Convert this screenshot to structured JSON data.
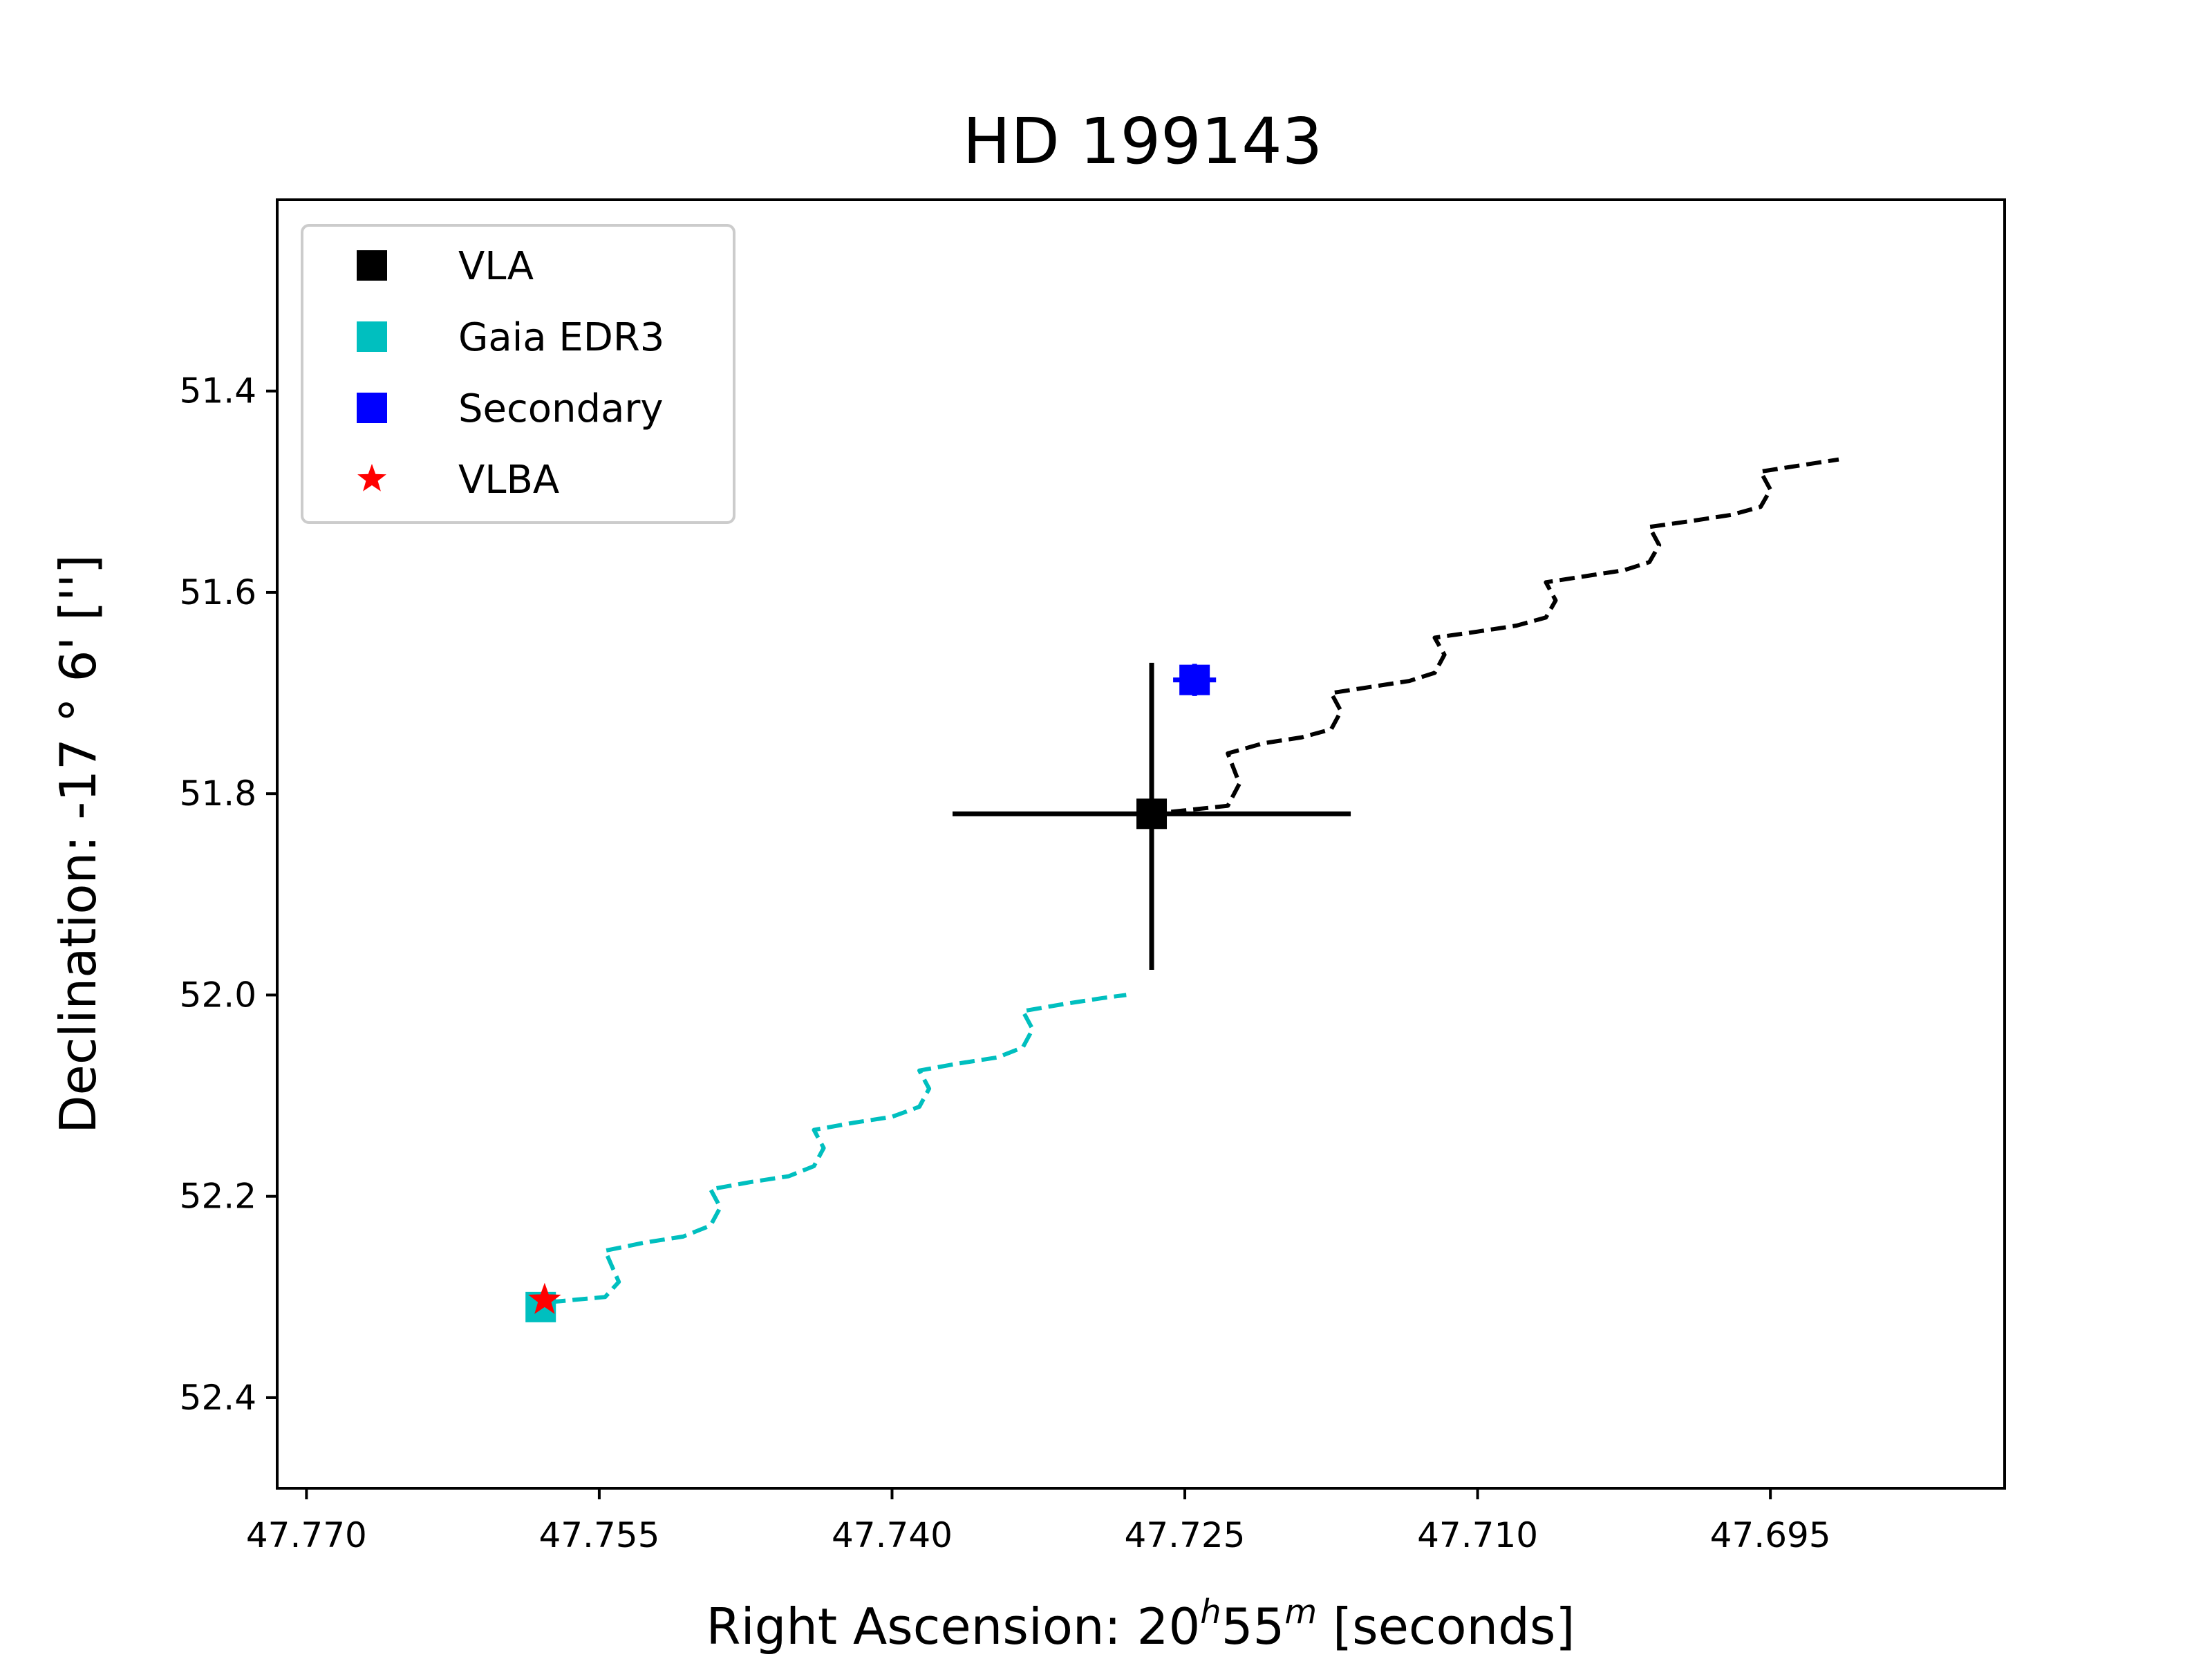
{
  "chart_data": {
    "type": "scatter",
    "title": "HD 199143",
    "xlabel": {
      "prefix": "Right Ascension: 20",
      "h_sup": "h",
      "mid": "55",
      "m_sup": "m",
      "suffix": " [seconds]"
    },
    "ylabel": "Declination: -17$^\\circ$6' ['']",
    "ylabel_display": "Declination: -17 ° 6' ['']",
    "x_inverted": true,
    "y_inverted": true,
    "xlim": [
      47.7715,
      47.683
    ],
    "ylim": [
      52.49,
      51.21
    ],
    "xticks": [
      47.77,
      47.755,
      47.74,
      47.725,
      47.71,
      47.695
    ],
    "xtick_labels": [
      "47.770",
      "47.755",
      "47.740",
      "47.725",
      "47.710",
      "47.695"
    ],
    "yticks": [
      51.4,
      51.6,
      51.8,
      52.0,
      52.2,
      52.4
    ],
    "ytick_labels": [
      "51.4",
      "51.6",
      "51.8",
      "52.0",
      "52.2",
      "52.4"
    ],
    "grid": false,
    "legend_position": "top-left",
    "legend": [
      {
        "label": "VLA",
        "marker": "square",
        "color": "#000000"
      },
      {
        "label": "Gaia EDR3",
        "marker": "square",
        "color": "#00bfbf"
      },
      {
        "label": "Secondary",
        "marker": "square",
        "color": "#0000ff"
      },
      {
        "label": "VLBA",
        "marker": "star",
        "color": "#ff0000"
      }
    ],
    "points": [
      {
        "name": "VLA",
        "x": 47.7267,
        "y": 51.82,
        "xerr": 0.0102,
        "yerr_low": 0.15,
        "yerr_high": 0.155,
        "color": "#000000",
        "marker": "square"
      },
      {
        "name": "Gaia EDR3",
        "x": 47.758,
        "y": 52.31,
        "color": "#00bfbf",
        "marker": "square"
      },
      {
        "name": "Secondary",
        "x": 47.7245,
        "y": 51.687,
        "xerr": 0.0011,
        "yerr": 0.016,
        "color": "#0000ff",
        "marker": "square"
      },
      {
        "name": "VLBA",
        "x": 47.7578,
        "y": 52.303,
        "color": "#ff0000",
        "marker": "star"
      }
    ],
    "tracks": [
      {
        "name": "VLA track",
        "color": "#000000",
        "style": "dashed",
        "x": [
          47.7257,
          47.7228,
          47.7222,
          47.7228,
          47.721,
          47.719,
          47.7175,
          47.717,
          47.7175,
          47.7155,
          47.7135,
          47.7122,
          47.7117,
          47.7122,
          47.71,
          47.708,
          47.7065,
          47.706,
          47.7065,
          47.7045,
          47.7025,
          47.7012,
          47.7007,
          47.7012,
          47.699,
          47.697,
          47.6955,
          47.695,
          47.6955,
          47.6935,
          47.6915
        ],
        "y": [
          51.818,
          51.812,
          51.79,
          51.76,
          51.75,
          51.744,
          51.736,
          51.718,
          51.7,
          51.694,
          51.688,
          51.68,
          51.662,
          51.645,
          51.639,
          51.633,
          51.625,
          51.608,
          51.59,
          51.584,
          51.578,
          51.57,
          51.553,
          51.535,
          51.529,
          51.523,
          51.515,
          51.498,
          51.48,
          51.474,
          51.468
        ]
      },
      {
        "name": "Gaia track",
        "color": "#00bfbf",
        "style": "dashed",
        "x": [
          47.7575,
          47.7547,
          47.754,
          47.7547,
          47.7527,
          47.7507,
          47.7493,
          47.7488,
          47.7493,
          47.7473,
          47.7453,
          47.744,
          47.7435,
          47.744,
          47.742,
          47.74,
          47.7386,
          47.7381,
          47.7386,
          47.7366,
          47.7346,
          47.7333,
          47.7328,
          47.7333,
          47.7312,
          47.7292,
          47.728
        ],
        "y": [
          52.305,
          52.3,
          52.285,
          52.254,
          52.246,
          52.24,
          52.229,
          52.211,
          52.193,
          52.186,
          52.18,
          52.17,
          52.152,
          52.134,
          52.127,
          52.121,
          52.111,
          52.093,
          52.075,
          52.068,
          52.062,
          52.052,
          52.034,
          52.016,
          52.009,
          52.003,
          52.0
        ]
      }
    ]
  }
}
